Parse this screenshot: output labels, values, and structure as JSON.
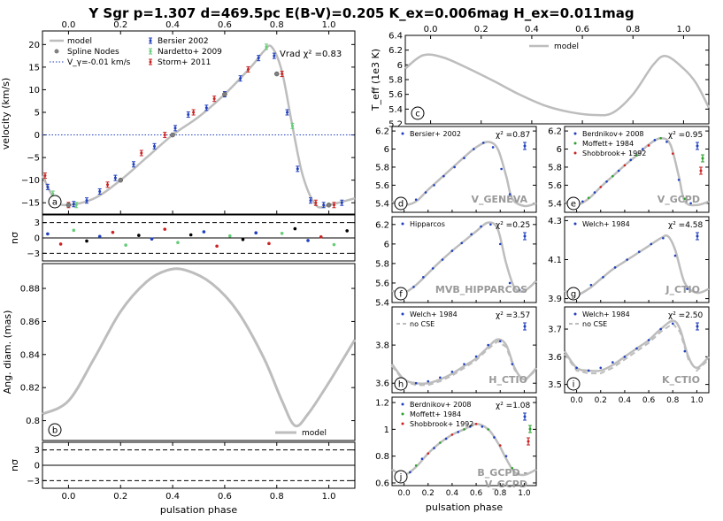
{
  "figure": {
    "title": "Y Sgr p=1.307 d=469.5pc E(B-V)=0.205 K_ex=0.006mag H_ex=0.011mag",
    "xlabel": "pulsation phase"
  },
  "colors": {
    "model": "#bdbdbd",
    "bersier": "#1f3fbf",
    "nardetto": "#66cc77",
    "storm": "#cc2222",
    "moffett": "#2ca02c",
    "shobbrook": "#cc2222",
    "dots": "#1f3fbf",
    "nodes": "#808080",
    "velline": "#1f3fbf",
    "panel_label": "#9a9a9a"
  },
  "chart_data": [
    {
      "id": "a",
      "type": "line",
      "ylabel": "velocity (km/s)",
      "xlim": [
        -0.1,
        1.1
      ],
      "ylim": [
        -17.5,
        23
      ],
      "yticks": [
        -15,
        -10,
        -5,
        0,
        5,
        10,
        15,
        20
      ],
      "xticks": [
        0,
        0.2,
        0.4,
        0.6,
        0.8,
        1.0
      ],
      "model": {
        "x": [
          -0.1,
          -0.05,
          0.0,
          0.1,
          0.2,
          0.3,
          0.4,
          0.5,
          0.6,
          0.7,
          0.75,
          0.78,
          0.82,
          0.86,
          0.9,
          0.95,
          1.0,
          1.1
        ],
        "y": [
          -9,
          -14.5,
          -15.5,
          -14,
          -10,
          -5,
          0,
          4,
          9,
          15,
          18.5,
          19.5,
          14,
          2,
          -9,
          -15.5,
          -15.5,
          -14
        ]
      },
      "series": [
        {
          "name": "Bersier 2002",
          "x": [
            -0.08,
            -0.04,
            0.02,
            0.07,
            0.12,
            0.18,
            0.25,
            0.33,
            0.41,
            0.46,
            0.53,
            0.6,
            0.66,
            0.73,
            0.79,
            0.84,
            0.88,
            0.93,
            0.98,
            1.05
          ],
          "y": [
            -11.5,
            -15,
            -15.3,
            -14.5,
            -12.5,
            -9.5,
            -6.5,
            -2.5,
            1.5,
            4.5,
            6,
            9,
            12.5,
            17,
            17.5,
            5,
            -7.5,
            -14.5,
            -15.5,
            -15
          ]
        },
        {
          "name": "Nardetto+ 2009",
          "x": [
            -0.06,
            0.03,
            0.76,
            0.86
          ],
          "y": [
            -13,
            -15.5,
            19.5,
            2
          ]
        },
        {
          "name": "Storm+ 2011",
          "x": [
            -0.09,
            0.0,
            0.15,
            0.28,
            0.37,
            0.48,
            0.56,
            0.69,
            0.82,
            0.95,
            1.02
          ],
          "y": [
            -9,
            -15.5,
            -11,
            -4,
            0,
            5,
            8,
            14.5,
            13.5,
            -15,
            -15.5
          ]
        }
      ],
      "nodes": {
        "x": [
          0.0,
          0.2,
          0.4,
          0.6,
          0.8,
          1.0
        ],
        "y": [
          -15.5,
          -10,
          0,
          9,
          13.5,
          -15.5
        ]
      },
      "legend": {
        "model": "model",
        "nodes": "Spline Nodes",
        "vgamma": "V_γ=-0.01 km/s"
      },
      "stat": "Vrad χ² =0.83",
      "label": "a"
    },
    {
      "id": "resid_a",
      "type": "scatter",
      "ylabel": "nσ",
      "xlim": [
        -0.1,
        1.1
      ],
      "ylim": [
        -4.5,
        4.5
      ],
      "yticks": [
        3,
        0,
        -3
      ],
      "ytick_labels": [
        "3",
        "0",
        "−3"
      ]
    },
    {
      "id": "b",
      "type": "line",
      "ylabel": "Ang. diam. (mas)",
      "xlim": [
        -0.1,
        1.1
      ],
      "ylim": [
        0.788,
        0.895
      ],
      "yticks": [
        0.8,
        0.82,
        0.84,
        0.86,
        0.88
      ],
      "model": {
        "x": [
          -0.1,
          0.0,
          0.1,
          0.2,
          0.3,
          0.38,
          0.45,
          0.55,
          0.65,
          0.75,
          0.82,
          0.87,
          0.92,
          1.0,
          1.1
        ],
        "y": [
          0.804,
          0.812,
          0.838,
          0.866,
          0.884,
          0.891,
          0.891,
          0.883,
          0.866,
          0.838,
          0.812,
          0.797,
          0.804,
          0.823,
          0.849
        ]
      },
      "legend": "model",
      "label": "b"
    },
    {
      "id": "resid_b",
      "type": "scatter",
      "ylabel": "nσ",
      "xlim": [
        -0.1,
        1.1
      ],
      "ylim": [
        -4.5,
        4.5
      ],
      "yticks": [
        3,
        0,
        -3
      ],
      "ytick_labels": [
        "3",
        "0",
        "−3"
      ]
    },
    {
      "id": "c",
      "type": "line",
      "ylabel": "T_eff (1e3 K)",
      "xlim": [
        -0.1,
        1.1
      ],
      "ylim": [
        5.2,
        6.4
      ],
      "yticks": [
        5.2,
        5.4,
        5.6,
        5.8,
        6.0,
        6.2,
        6.4
      ],
      "xticks": [
        0,
        0.2,
        0.4,
        0.6,
        0.8,
        1.0
      ],
      "model": {
        "x": [
          -0.1,
          -0.03,
          0.05,
          0.15,
          0.25,
          0.35,
          0.45,
          0.55,
          0.65,
          0.72,
          0.8,
          0.88,
          0.93,
          1.0,
          1.05,
          1.1
        ],
        "y": [
          5.95,
          6.13,
          6.1,
          5.95,
          5.78,
          5.6,
          5.45,
          5.36,
          5.32,
          5.35,
          5.6,
          6.0,
          6.12,
          5.95,
          5.75,
          5.42
        ]
      },
      "legend": "model",
      "label": "c"
    },
    {
      "id": "d",
      "type": "scatter",
      "xlim": [
        -0.1,
        1.1
      ],
      "ylim": [
        5.3,
        6.25
      ],
      "yticks": [
        5.4,
        5.6,
        5.8,
        6.0,
        6.2
      ],
      "model": {
        "x": [
          -0.1,
          0.0,
          0.1,
          0.2,
          0.3,
          0.4,
          0.5,
          0.6,
          0.7,
          0.78,
          0.85,
          0.9,
          1.0,
          1.1
        ],
        "y": [
          5.42,
          5.38,
          5.42,
          5.55,
          5.67,
          5.79,
          5.91,
          6.02,
          6.08,
          6.0,
          5.7,
          5.45,
          5.37,
          5.4
        ]
      },
      "series": [
        {
          "name": "Bersier+ 2002",
          "x": [
            0.02,
            0.1,
            0.18,
            0.25,
            0.33,
            0.42,
            0.5,
            0.58,
            0.66,
            0.74,
            0.81,
            0.88
          ],
          "y": [
            5.4,
            5.44,
            5.52,
            5.6,
            5.7,
            5.8,
            5.9,
            6.0,
            6.07,
            6.02,
            5.78,
            5.5
          ]
        }
      ],
      "stat": "χ² =0.87",
      "band": "V_GENEVA",
      "label": "d"
    },
    {
      "id": "e",
      "type": "scatter",
      "xlim": [
        -0.1,
        1.1
      ],
      "ylim": [
        5.3,
        6.25
      ],
      "yticks": [
        5.4,
        5.6,
        5.8,
        6.0,
        6.2
      ],
      "model": {
        "x": [
          -0.1,
          0.0,
          0.1,
          0.2,
          0.3,
          0.4,
          0.5,
          0.6,
          0.7,
          0.78,
          0.85,
          0.9,
          1.0,
          1.1
        ],
        "y": [
          5.42,
          5.38,
          5.45,
          5.58,
          5.7,
          5.82,
          5.93,
          6.05,
          6.12,
          6.05,
          5.7,
          5.42,
          5.38,
          5.42
        ]
      },
      "series": [
        {
          "name": "Berdnikov+ 2008",
          "x": [
            0.05,
            0.15,
            0.25,
            0.35,
            0.45,
            0.55,
            0.65,
            0.75,
            0.85,
            0.95
          ],
          "y": [
            5.42,
            5.52,
            5.64,
            5.76,
            5.88,
            6.0,
            6.1,
            6.08,
            5.66,
            5.4
          ]
        },
        {
          "name": "Moffett+ 1984",
          "x": [
            0.1,
            0.3,
            0.5,
            0.7,
            0.9
          ],
          "y": [
            5.46,
            5.7,
            5.93,
            6.12,
            5.45
          ]
        },
        {
          "name": "Shobbrook+ 1992",
          "x": [
            0.2,
            0.4,
            0.6,
            0.8
          ],
          "y": [
            5.58,
            5.82,
            6.04,
            5.95
          ]
        }
      ],
      "stat": "χ² =0.95",
      "band": "V_GCPD",
      "label": "e"
    },
    {
      "id": "f",
      "type": "scatter",
      "xlim": [
        -0.1,
        1.1
      ],
      "ylim": [
        5.4,
        6.28
      ],
      "yticks": [
        5.4,
        5.6,
        5.8,
        6.0,
        6.2
      ],
      "model": {
        "x": [
          -0.1,
          0.0,
          0.1,
          0.2,
          0.3,
          0.4,
          0.5,
          0.6,
          0.7,
          0.78,
          0.85,
          0.92,
          1.0,
          1.1
        ],
        "y": [
          5.52,
          5.5,
          5.58,
          5.7,
          5.82,
          5.93,
          6.03,
          6.13,
          6.22,
          6.15,
          5.8,
          5.55,
          5.52,
          5.62
        ]
      },
      "series": [
        {
          "name": "Hipparcos",
          "x": [
            0.0,
            0.08,
            0.16,
            0.24,
            0.32,
            0.4,
            0.48,
            0.56,
            0.64,
            0.72,
            0.8,
            0.88,
            0.96
          ],
          "y": [
            5.5,
            5.56,
            5.66,
            5.75,
            5.84,
            5.93,
            6.01,
            6.1,
            6.18,
            6.2,
            6.0,
            5.6,
            5.53
          ]
        }
      ],
      "stat": "χ² =0.25",
      "band": "MVB_HIPPARCOS",
      "label": "f"
    },
    {
      "id": "g",
      "type": "scatter",
      "xlim": [
        -0.1,
        1.1
      ],
      "ylim": [
        3.88,
        4.32
      ],
      "yticks": [
        3.9,
        4.1,
        4.3
      ],
      "model": {
        "x": [
          -0.1,
          0.0,
          0.1,
          0.2,
          0.3,
          0.4,
          0.5,
          0.6,
          0.7,
          0.76,
          0.82,
          0.9,
          1.0,
          1.1
        ],
        "y": [
          3.94,
          3.92,
          3.95,
          4.0,
          4.05,
          4.09,
          4.13,
          4.17,
          4.21,
          4.22,
          4.15,
          3.98,
          3.93,
          3.95
        ]
      },
      "series": [
        {
          "name": "Welch+ 1984",
          "x": [
            0.02,
            0.12,
            0.22,
            0.32,
            0.42,
            0.52,
            0.62,
            0.72,
            0.82,
            0.92
          ],
          "y": [
            3.92,
            3.97,
            4.01,
            4.06,
            4.1,
            4.14,
            4.18,
            4.21,
            4.12,
            3.95
          ]
        }
      ],
      "stat": "χ² =4.58",
      "band": "J_CTIO",
      "label": "g"
    },
    {
      "id": "h",
      "type": "scatter",
      "xlim": [
        -0.1,
        1.1
      ],
      "ylim": [
        3.55,
        4.0
      ],
      "yticks": [
        3.6,
        3.8
      ],
      "model": {
        "x": [
          -0.1,
          0.0,
          0.1,
          0.2,
          0.3,
          0.4,
          0.5,
          0.6,
          0.7,
          0.78,
          0.85,
          0.92,
          1.0,
          1.1
        ],
        "y": [
          3.7,
          3.62,
          3.6,
          3.6,
          3.62,
          3.65,
          3.69,
          3.73,
          3.79,
          3.83,
          3.8,
          3.68,
          3.62,
          3.68
        ]
      },
      "series": [
        {
          "name": "Welch+ 1984",
          "x": [
            0.0,
            0.1,
            0.2,
            0.3,
            0.4,
            0.5,
            0.6,
            0.7,
            0.8,
            0.9
          ],
          "y": [
            3.62,
            3.6,
            3.61,
            3.63,
            3.66,
            3.7,
            3.74,
            3.8,
            3.82,
            3.7
          ]
        }
      ],
      "nocse": "no CSE",
      "stat": "χ² =3.57",
      "band": "H_CTIO",
      "label": "h"
    },
    {
      "id": "i",
      "type": "scatter",
      "xlim": [
        -0.1,
        1.1
      ],
      "ylim": [
        3.47,
        3.78
      ],
      "yticks": [
        3.5,
        3.6,
        3.7
      ],
      "xticks": [
        0,
        0.2,
        0.4,
        0.6,
        0.8,
        1.0
      ],
      "model": {
        "x": [
          -0.1,
          0.0,
          0.1,
          0.2,
          0.3,
          0.4,
          0.5,
          0.6,
          0.7,
          0.8,
          0.86,
          0.93,
          1.0,
          1.1
        ],
        "y": [
          3.62,
          3.56,
          3.55,
          3.55,
          3.57,
          3.6,
          3.63,
          3.66,
          3.7,
          3.73,
          3.7,
          3.6,
          3.56,
          3.6
        ]
      },
      "series": [
        {
          "name": "Welch+ 1984",
          "x": [
            0.0,
            0.1,
            0.2,
            0.3,
            0.4,
            0.5,
            0.6,
            0.7,
            0.8,
            0.9
          ],
          "y": [
            3.56,
            3.55,
            3.56,
            3.58,
            3.6,
            3.63,
            3.66,
            3.7,
            3.72,
            3.62
          ]
        }
      ],
      "nocse": "no CSE",
      "stat": "χ² =2.50",
      "band": "K_CTIO",
      "label": "i"
    },
    {
      "id": "j",
      "type": "scatter",
      "xlim": [
        -0.1,
        1.1
      ],
      "ylim": [
        0.58,
        1.24
      ],
      "yticks": [
        0.6,
        0.8,
        1.0,
        1.2
      ],
      "xticks": [
        0,
        0.2,
        0.4,
        0.6,
        0.8,
        1.0
      ],
      "model": {
        "x": [
          -0.1,
          0.0,
          0.1,
          0.2,
          0.3,
          0.4,
          0.5,
          0.6,
          0.7,
          0.78,
          0.85,
          0.92,
          1.0,
          1.1
        ],
        "y": [
          0.7,
          0.66,
          0.72,
          0.82,
          0.9,
          0.96,
          1.0,
          1.04,
          1.0,
          0.9,
          0.78,
          0.68,
          0.66,
          0.7
        ]
      },
      "series": [
        {
          "name": "Berdnikov+ 2008",
          "x": [
            0.05,
            0.15,
            0.25,
            0.35,
            0.45,
            0.55,
            0.65,
            0.75,
            0.85,
            0.95
          ],
          "y": [
            0.68,
            0.78,
            0.86,
            0.93,
            0.98,
            1.02,
            1.02,
            0.94,
            0.8,
            0.67
          ]
        },
        {
          "name": "Moffett+ 1984",
          "x": [
            0.1,
            0.3,
            0.5,
            0.7,
            0.9
          ],
          "y": [
            0.73,
            0.9,
            1.0,
            1.0,
            0.71
          ]
        },
        {
          "name": "Shobbrook+ 1992",
          "x": [
            0.2,
            0.4,
            0.6,
            0.8
          ],
          "y": [
            0.82,
            0.96,
            1.04,
            0.88
          ]
        }
      ],
      "stat": "χ² =1.08",
      "band": "B_GCPD -",
      "band2": "V_GCPD",
      "label": "j"
    }
  ]
}
